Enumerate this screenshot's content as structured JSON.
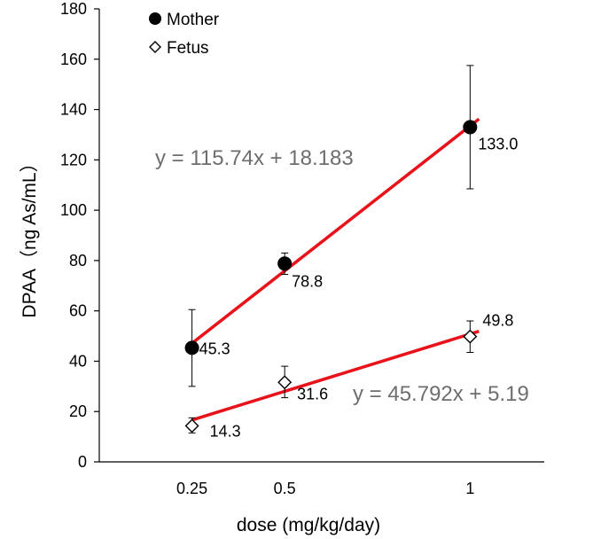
{
  "chart_data": {
    "type": "scatter",
    "xlabel": "dose (mg/kg/day)",
    "ylabel": "DPAA（ng As/mL）",
    "x_ticks": [
      "0.25",
      "0.5",
      "1"
    ],
    "x_values": [
      0.25,
      0.5,
      1
    ],
    "xlim": [
      0,
      1.2
    ],
    "ylim": [
      0,
      180
    ],
    "y_ticks": [
      0,
      20,
      40,
      60,
      80,
      100,
      120,
      140,
      160,
      180
    ],
    "grid": false,
    "legend_position": "top-left",
    "series": [
      {
        "name": "Mother",
        "marker": "filled-circle",
        "color": "#000000",
        "points": [
          {
            "x": 0.25,
            "y": 45.3,
            "label": "45.3",
            "err_low": 30.0,
            "err_high": 60.5
          },
          {
            "x": 0.5,
            "y": 78.8,
            "label": "78.8",
            "err_low": 74.5,
            "err_high": 83.0
          },
          {
            "x": 1,
            "y": 133.0,
            "label": "133.0",
            "err_low": 108.5,
            "err_high": 157.5
          }
        ],
        "trendline": {
          "slope": 115.74,
          "intercept": 18.183,
          "equation": "y = 115.74x + 18.183",
          "color": "#e8131a"
        }
      },
      {
        "name": "Fetus",
        "marker": "open-diamond",
        "color": "#000000",
        "points": [
          {
            "x": 0.25,
            "y": 14.3,
            "label": "14.3",
            "err_low": 11.5,
            "err_high": 17.5
          },
          {
            "x": 0.5,
            "y": 31.6,
            "label": "31.6",
            "err_low": 25.5,
            "err_high": 38.0
          },
          {
            "x": 1,
            "y": 49.8,
            "label": "49.8",
            "err_low": 43.5,
            "err_high": 56.0
          }
        ],
        "trendline": {
          "slope": 45.792,
          "intercept": 5.19,
          "equation": "y = 45.792x + 5.19",
          "color": "#e8131a"
        }
      }
    ]
  }
}
